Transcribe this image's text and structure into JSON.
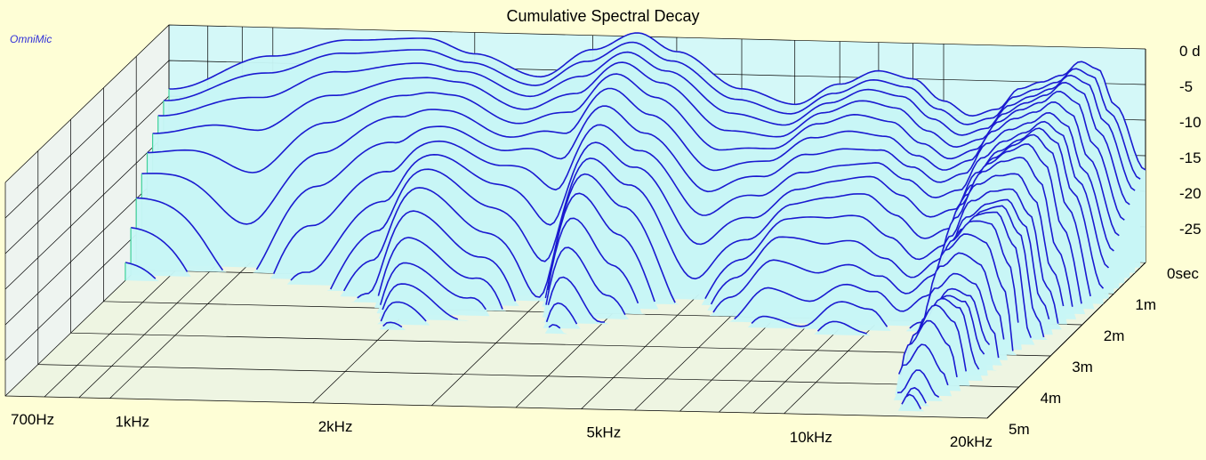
{
  "brand": "OmniMic",
  "colors": {
    "background": "#fefed6",
    "wall": "#c8f6f6",
    "curve": "#1a1ad0",
    "surface": "#c8f6f6",
    "grid": "#000000",
    "floor": "#eef5e2"
  },
  "chart_data": {
    "type": "waterfall",
    "title": "Cumulative Spectral Decay",
    "x_axis": {
      "label": "",
      "scale": "log",
      "range": [
        700,
        20000
      ],
      "unit": "Hz",
      "ticks": [
        {
          "value": 700,
          "label": "700Hz"
        },
        {
          "value": 1000,
          "label": "1kHz"
        },
        {
          "value": 2000,
          "label": "2kHz"
        },
        {
          "value": 5000,
          "label": "5kHz"
        },
        {
          "value": 10000,
          "label": "10kHz"
        },
        {
          "value": 20000,
          "label": "20kHz"
        }
      ]
    },
    "y_axis": {
      "label": "",
      "range": [
        -30,
        0
      ],
      "unit": "dB",
      "ticks": [
        {
          "value": 0,
          "label": "0 d"
        },
        {
          "value": -5,
          "label": "-5"
        },
        {
          "value": -10,
          "label": "-10"
        },
        {
          "value": -15,
          "label": "-15"
        },
        {
          "value": -20,
          "label": "-20"
        },
        {
          "value": -25,
          "label": "-25"
        }
      ]
    },
    "z_axis": {
      "label": "",
      "range": [
        0,
        5
      ],
      "unit": "ms",
      "ticks": [
        {
          "value": 0,
          "label": "0sec"
        },
        {
          "value": 1,
          "label": "1m"
        },
        {
          "value": 2,
          "label": "2m"
        },
        {
          "value": 3,
          "label": "3m"
        },
        {
          "value": 4,
          "label": "4m"
        },
        {
          "value": 5,
          "label": "5m"
        }
      ]
    },
    "slice_count": 30,
    "decay_shape": {
      "freq_hz": [
        700,
        1000,
        1300,
        1700,
        2000,
        2500,
        3000,
        3500,
        4000,
        5000,
        6000,
        7000,
        8000,
        9000,
        10000,
        11000,
        12000,
        13000,
        14000,
        15000,
        16000,
        17000,
        18000,
        20000
      ],
      "level_db_at_0ms": [
        -9,
        -4,
        -1.5,
        -1,
        -3,
        -6,
        -2,
        0.5,
        -2,
        -7,
        -9,
        -6,
        -4,
        -5,
        -8,
        -10,
        -9,
        -6,
        -5,
        -4,
        -2,
        -3,
        -8,
        -17
      ],
      "decay_time_ms": [
        1.5,
        0.9,
        1.2,
        1.6,
        2.4,
        2.2,
        1.5,
        2.3,
        2.1,
        1.6,
        2.2,
        2.4,
        2.2,
        2.4,
        2.5,
        2.4,
        2.5,
        3.2,
        4.4,
        4.8,
        4.2,
        3.5,
        2.7,
        2.0
      ]
    }
  }
}
